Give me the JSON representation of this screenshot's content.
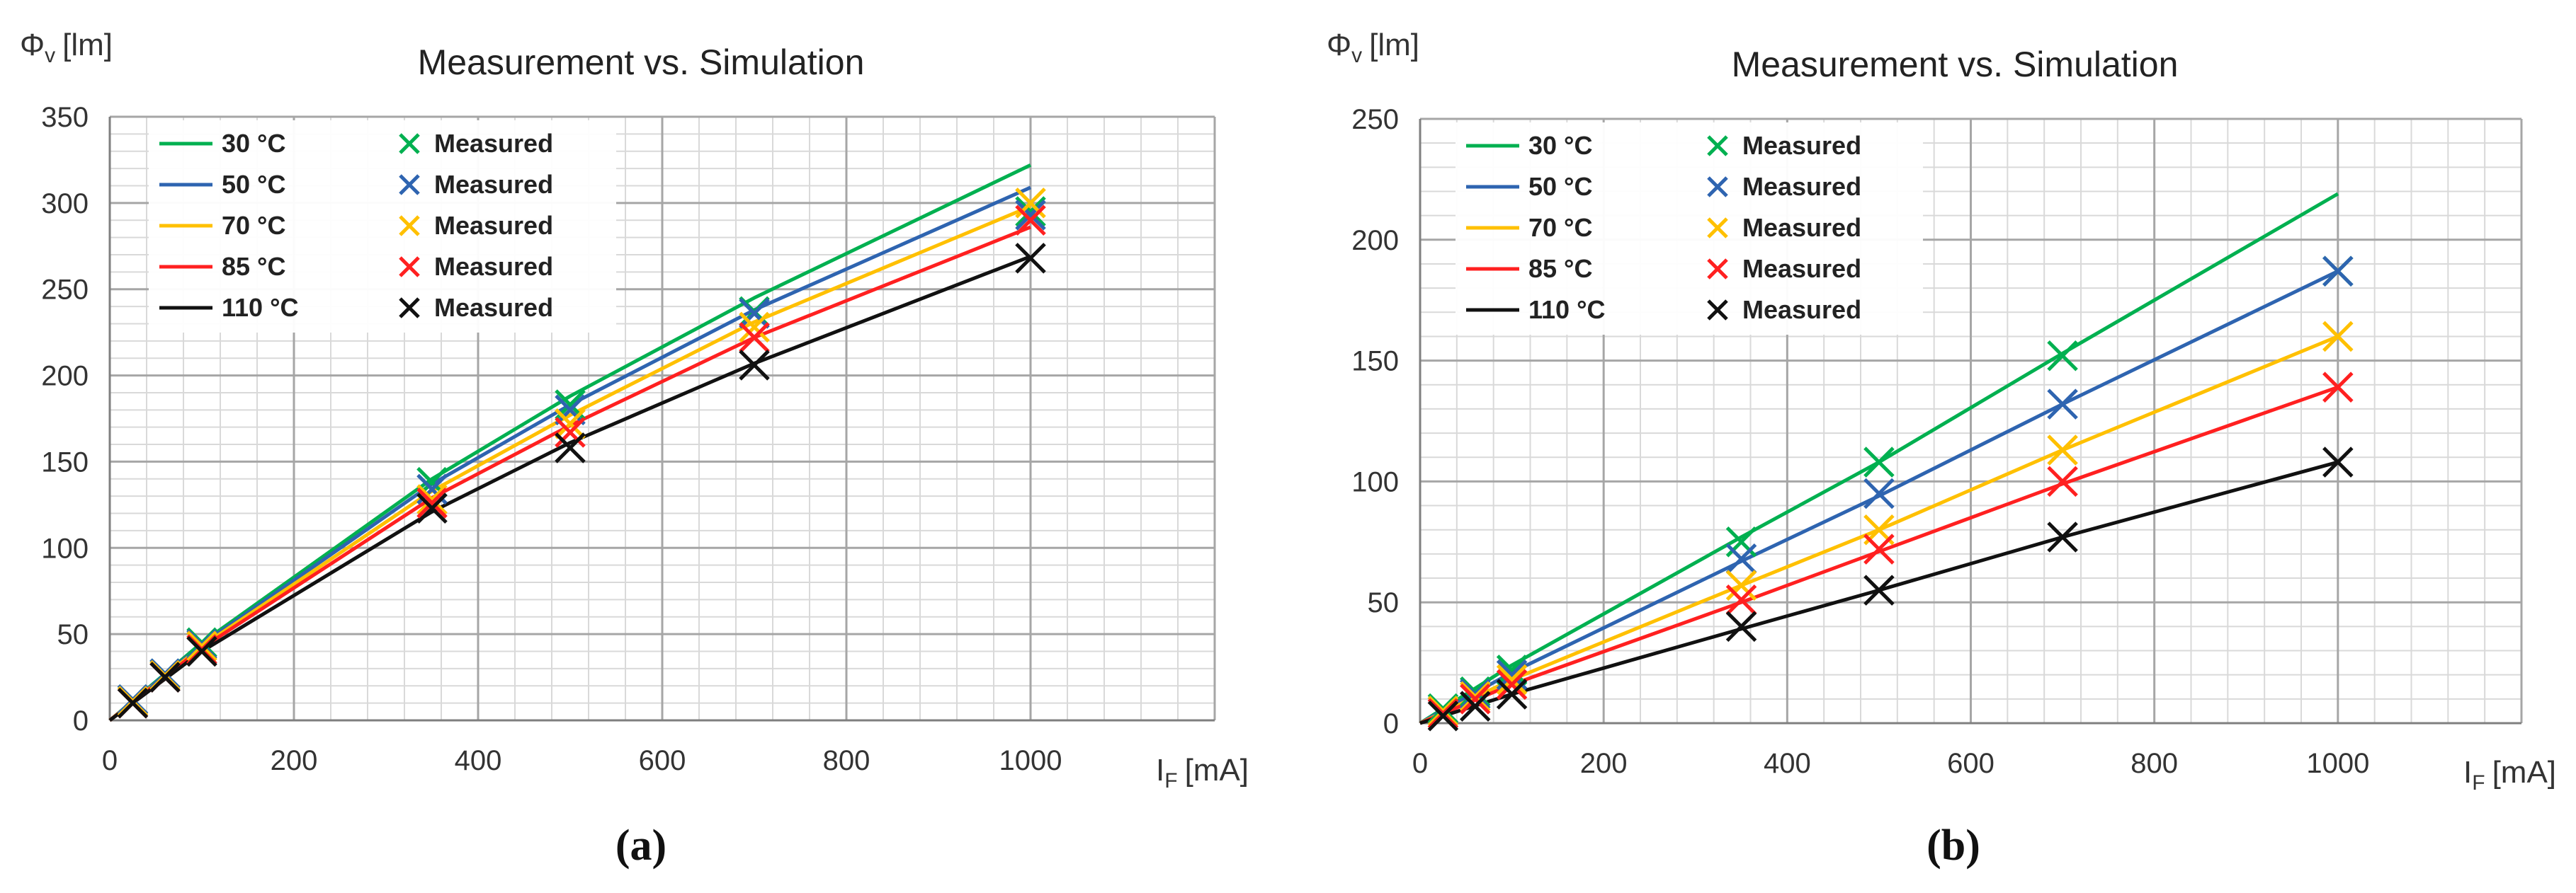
{
  "chart_data": [
    {
      "type": "line",
      "panel": "a",
      "title": "Measurement vs. Simulation",
      "ylabel": "Φ",
      "ylabel_sub": "v",
      "ylabel_unit": "[lm]",
      "xlabel": "I",
      "xlabel_sub": "F",
      "xlabel_unit": "[mA]",
      "caption": "(a)",
      "xlim": [
        0,
        1200
      ],
      "ylim": [
        0,
        350
      ],
      "x_ticks": [
        0,
        200,
        400,
        600,
        800,
        1000
      ],
      "y_ticks": [
        0,
        50,
        100,
        150,
        200,
        250,
        300,
        350
      ],
      "grid": true,
      "legend_position": "top-left",
      "measured_label": "Measured",
      "series": [
        {
          "name": "30 °C",
          "color": "#00b050",
          "sim_x": [
            0,
            100,
            350,
            500,
            700,
            1000
          ],
          "sim_y": [
            0,
            45,
            140,
            188,
            245,
            322
          ],
          "meas_x": [
            25,
            60,
            100,
            350,
            500,
            700,
            1000
          ],
          "meas_y": [
            12,
            27,
            45,
            138,
            183,
            237,
            295
          ]
        },
        {
          "name": "50 °C",
          "color": "#2e64b0",
          "sim_x": [
            0,
            100,
            350,
            500,
            700,
            1000
          ],
          "sim_y": [
            0,
            44,
            137,
            183,
            238,
            309
          ],
          "meas_x": [
            25,
            60,
            100,
            350,
            500,
            700,
            1000
          ],
          "meas_y": [
            12,
            27,
            44,
            134,
            180,
            236,
            293
          ]
        },
        {
          "name": "70 °C",
          "color": "#ffc000",
          "sim_x": [
            0,
            100,
            350,
            500,
            700,
            1000
          ],
          "sim_y": [
            0,
            43,
            133,
            177,
            231,
            298
          ],
          "meas_x": [
            25,
            60,
            100,
            350,
            500,
            700,
            1000
          ],
          "meas_y": [
            11,
            26,
            43,
            128,
            172,
            228,
            300
          ]
        },
        {
          "name": "85 °C",
          "color": "#ff2020",
          "sim_x": [
            0,
            100,
            350,
            500,
            700,
            1000
          ],
          "sim_y": [
            0,
            42,
            129,
            171,
            222,
            286
          ],
          "meas_x": [
            25,
            60,
            100,
            350,
            500,
            700,
            1000
          ],
          "meas_y": [
            10,
            25,
            41,
            126,
            167,
            222,
            290
          ]
        },
        {
          "name": "110 °C",
          "color": "#111111",
          "sim_x": [
            0,
            100,
            350,
            500,
            700,
            1000
          ],
          "sim_y": [
            0,
            40,
            121,
            161,
            207,
            269
          ],
          "meas_x": [
            25,
            60,
            100,
            350,
            500,
            700,
            1000
          ],
          "meas_y": [
            10,
            25,
            40,
            123,
            158,
            206,
            268
          ]
        }
      ]
    },
    {
      "type": "line",
      "panel": "b",
      "title": "Measurement vs. Simulation",
      "ylabel": "Φ",
      "ylabel_sub": "v",
      "ylabel_unit": "[lm]",
      "xlabel": "I",
      "xlabel_sub": "F",
      "xlabel_unit": "[mA]",
      "caption": "(b)",
      "xlim": [
        0,
        1200
      ],
      "ylim": [
        0,
        250
      ],
      "x_ticks": [
        0,
        200,
        400,
        600,
        800,
        1000
      ],
      "y_ticks": [
        0,
        50,
        100,
        150,
        200,
        250
      ],
      "grid": true,
      "legend_position": "top-left",
      "measured_label": "Measured",
      "series": [
        {
          "name": "30 °C",
          "color": "#00b050",
          "sim_x": [
            0,
            100,
            350,
            500,
            700,
            1000
          ],
          "sim_y": [
            0,
            24,
            77,
            108,
            153,
            219
          ],
          "meas_x": [
            25,
            60,
            100,
            350,
            500,
            700,
            1000
          ],
          "meas_y": [
            6,
            13,
            22,
            75,
            108,
            152,
            187
          ]
        },
        {
          "name": "50 °C",
          "color": "#2e64b0",
          "sim_x": [
            0,
            100,
            350,
            500,
            700,
            1000
          ],
          "sim_y": [
            0,
            21,
            67,
            94,
            132,
            187
          ],
          "meas_x": [
            25,
            60,
            100,
            350,
            500,
            700,
            1000
          ],
          "meas_y": [
            5,
            12,
            20,
            68,
            95,
            132,
            187
          ]
        },
        {
          "name": "70 °C",
          "color": "#ffc000",
          "sim_x": [
            0,
            100,
            350,
            500,
            700,
            1000
          ],
          "sim_y": [
            0,
            18,
            57,
            80,
            113,
            160
          ],
          "meas_x": [
            25,
            60,
            100,
            350,
            500,
            700,
            1000
          ],
          "meas_y": [
            5,
            11,
            18,
            57,
            80,
            113,
            160
          ]
        },
        {
          "name": "85 °C",
          "color": "#ff2020",
          "sim_x": [
            0,
            100,
            350,
            500,
            700,
            1000
          ],
          "sim_y": [
            0,
            16,
            50,
            71,
            99,
            139
          ],
          "meas_x": [
            25,
            60,
            100,
            350,
            500,
            700,
            1000
          ],
          "meas_y": [
            4,
            10,
            16,
            51,
            72,
            100,
            139
          ]
        },
        {
          "name": "110 °C",
          "color": "#111111",
          "sim_x": [
            0,
            100,
            350,
            500,
            700,
            1000
          ],
          "sim_y": [
            0,
            12,
            39,
            55,
            77,
            108
          ],
          "meas_x": [
            25,
            60,
            100,
            350,
            500,
            700,
            1000
          ],
          "meas_y": [
            3,
            7,
            12,
            40,
            55,
            77,
            108
          ]
        }
      ]
    }
  ]
}
